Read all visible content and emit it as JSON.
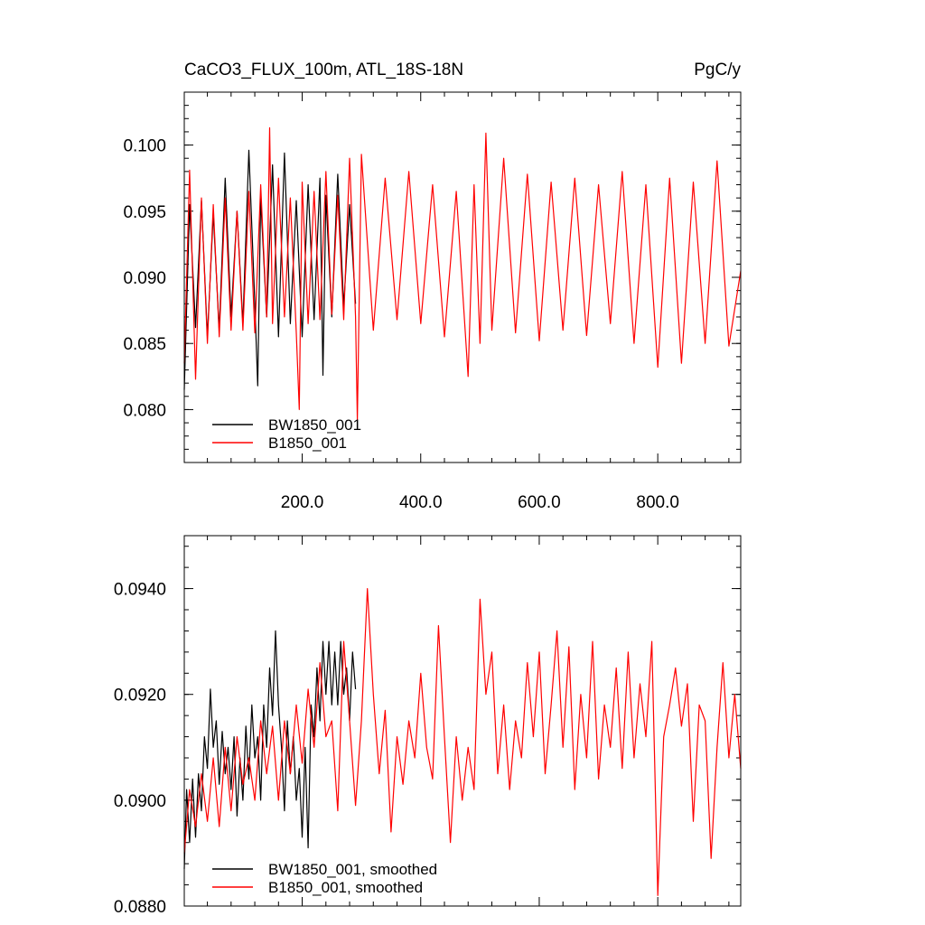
{
  "chart_data": [
    {
      "type": "line",
      "title": "CaCO3_FLUX_100m, ATL_18S-18N",
      "units_label": "PgC/y",
      "xlim": [
        1,
        940
      ],
      "ylim": [
        0.076,
        0.104
      ],
      "x_ticks": [
        200,
        400,
        600,
        800
      ],
      "x_tick_labels": [
        "200.0",
        "400.0",
        "600.0",
        "800.0"
      ],
      "y_ticks": [
        0.08,
        0.085,
        0.09,
        0.095,
        0.1
      ],
      "y_tick_labels": [
        "0.080",
        "0.085",
        "0.090",
        "0.095",
        "0.100"
      ],
      "legend_position": "bottom-left",
      "series": [
        {
          "name": "BW1850_001",
          "color": "#000000",
          "x": [
            1,
            10,
            20,
            30,
            40,
            50,
            60,
            70,
            80,
            90,
            100,
            110,
            120,
            125,
            130,
            140,
            150,
            160,
            170,
            180,
            190,
            200,
            210,
            220,
            230,
            235,
            240,
            250,
            260,
            270,
            280,
            290
          ],
          "values": [
            0.0815,
            0.0955,
            0.0862,
            0.0958,
            0.0855,
            0.0948,
            0.086,
            0.0975,
            0.087,
            0.095,
            0.0865,
            0.0996,
            0.088,
            0.0818,
            0.096,
            0.087,
            0.0985,
            0.0855,
            0.0994,
            0.0865,
            0.0958,
            0.0855,
            0.097,
            0.0868,
            0.0975,
            0.0826,
            0.0962,
            0.087,
            0.0978,
            0.0878,
            0.0955,
            0.088
          ]
        },
        {
          "name": "B1850_001",
          "color": "#ff0000",
          "x": [
            1,
            10,
            20,
            30,
            40,
            50,
            60,
            70,
            80,
            90,
            100,
            110,
            120,
            130,
            140,
            145,
            150,
            160,
            170,
            180,
            190,
            195,
            200,
            210,
            220,
            230,
            240,
            250,
            260,
            270,
            280,
            290,
            293,
            300,
            320,
            340,
            360,
            380,
            400,
            420,
            440,
            460,
            480,
            490,
            500,
            510,
            520,
            540,
            560,
            580,
            600,
            620,
            640,
            660,
            680,
            700,
            720,
            740,
            760,
            780,
            800,
            820,
            840,
            860,
            880,
            900,
            920,
            940
          ],
          "values": [
            0.0835,
            0.0981,
            0.0823,
            0.096,
            0.085,
            0.0955,
            0.0855,
            0.096,
            0.086,
            0.095,
            0.086,
            0.0965,
            0.0858,
            0.097,
            0.087,
            0.1013,
            0.0865,
            0.0975,
            0.087,
            0.096,
            0.0858,
            0.08,
            0.0972,
            0.0865,
            0.0965,
            0.0868,
            0.098,
            0.0872,
            0.0962,
            0.0868,
            0.099,
            0.087,
            0.0792,
            0.0993,
            0.086,
            0.0975,
            0.0868,
            0.098,
            0.0865,
            0.097,
            0.0855,
            0.0965,
            0.0825,
            0.097,
            0.085,
            0.1009,
            0.086,
            0.099,
            0.0858,
            0.0978,
            0.0852,
            0.0972,
            0.086,
            0.0975,
            0.0856,
            0.097,
            0.0865,
            0.098,
            0.085,
            0.097,
            0.0832,
            0.0975,
            0.0835,
            0.0972,
            0.085,
            0.0988,
            0.0848,
            0.0905
          ]
        }
      ]
    },
    {
      "type": "line",
      "xlim": [
        1,
        940
      ],
      "ylim": [
        0.088,
        0.095
      ],
      "x_ticks": [
        200,
        400,
        600,
        800
      ],
      "y_ticks": [
        0.088,
        0.09,
        0.092,
        0.094
      ],
      "y_tick_labels": [
        "0.0880",
        "0.0900",
        "0.0920",
        "0.0940"
      ],
      "legend_position": "bottom-left",
      "series": [
        {
          "name": "BW1850_001, smoothed",
          "color": "#000000",
          "x": [
            1,
            5,
            10,
            15,
            20,
            25,
            30,
            35,
            40,
            45,
            50,
            55,
            60,
            65,
            70,
            75,
            80,
            85,
            90,
            95,
            100,
            105,
            110,
            115,
            120,
            125,
            130,
            135,
            140,
            145,
            150,
            155,
            160,
            165,
            170,
            175,
            180,
            185,
            190,
            195,
            200,
            205,
            210,
            215,
            220,
            225,
            230,
            235,
            240,
            245,
            250,
            255,
            260,
            265,
            270,
            275,
            280,
            285,
            290
          ],
          "values": [
            0.0887,
            0.0902,
            0.0892,
            0.0904,
            0.0893,
            0.0905,
            0.0898,
            0.0912,
            0.0906,
            0.0921,
            0.091,
            0.0915,
            0.0903,
            0.0913,
            0.0905,
            0.091,
            0.0902,
            0.0912,
            0.0897,
            0.0908,
            0.09,
            0.0914,
            0.0904,
            0.0918,
            0.0908,
            0.0912,
            0.09,
            0.0918,
            0.091,
            0.0925,
            0.0916,
            0.0932,
            0.0918,
            0.091,
            0.0898,
            0.0915,
            0.0905,
            0.0912,
            0.09,
            0.0906,
            0.0893,
            0.091,
            0.0891,
            0.0918,
            0.0912,
            0.0925,
            0.0915,
            0.093,
            0.092,
            0.093,
            0.0918,
            0.0928,
            0.0918,
            0.093,
            0.092,
            0.0925,
            0.0915,
            0.0928,
            0.0921
          ]
        },
        {
          "name": "B1850_001, smoothed",
          "color": "#ff0000",
          "x": [
            1,
            10,
            20,
            30,
            40,
            50,
            60,
            70,
            80,
            90,
            100,
            110,
            120,
            130,
            140,
            150,
            160,
            170,
            180,
            190,
            200,
            210,
            220,
            230,
            240,
            250,
            260,
            270,
            280,
            290,
            300,
            310,
            320,
            330,
            340,
            350,
            360,
            370,
            380,
            390,
            400,
            410,
            420,
            430,
            440,
            450,
            460,
            470,
            480,
            490,
            500,
            510,
            520,
            530,
            540,
            550,
            560,
            570,
            580,
            590,
            600,
            610,
            620,
            630,
            640,
            650,
            660,
            670,
            680,
            690,
            700,
            710,
            720,
            730,
            740,
            750,
            760,
            770,
            780,
            790,
            800,
            810,
            820,
            830,
            840,
            850,
            860,
            870,
            880,
            890,
            900,
            910,
            920,
            930,
            940
          ],
          "values": [
            0.089,
            0.0902,
            0.0895,
            0.0905,
            0.0896,
            0.0908,
            0.0895,
            0.091,
            0.0898,
            0.0912,
            0.0903,
            0.0908,
            0.09,
            0.0915,
            0.0905,
            0.0914,
            0.09,
            0.0915,
            0.0905,
            0.0918,
            0.0907,
            0.0921,
            0.091,
            0.0926,
            0.0912,
            0.0915,
            0.0898,
            0.093,
            0.0915,
            0.0899,
            0.0915,
            0.094,
            0.092,
            0.0905,
            0.0917,
            0.0894,
            0.0912,
            0.0903,
            0.0915,
            0.0908,
            0.0924,
            0.091,
            0.0904,
            0.0933,
            0.0912,
            0.0892,
            0.0912,
            0.09,
            0.091,
            0.0902,
            0.0938,
            0.092,
            0.0928,
            0.0905,
            0.0918,
            0.0902,
            0.0915,
            0.0908,
            0.0926,
            0.0912,
            0.0928,
            0.0905,
            0.0918,
            0.0932,
            0.091,
            0.0929,
            0.0902,
            0.092,
            0.0908,
            0.093,
            0.0904,
            0.0918,
            0.091,
            0.0925,
            0.0906,
            0.0928,
            0.0908,
            0.0922,
            0.0912,
            0.093,
            0.0882,
            0.0912,
            0.0918,
            0.0925,
            0.0914,
            0.0922,
            0.0896,
            0.0918,
            0.0915,
            0.0889,
            0.091,
            0.0926,
            0.0908,
            0.092,
            0.0906
          ]
        }
      ]
    }
  ]
}
